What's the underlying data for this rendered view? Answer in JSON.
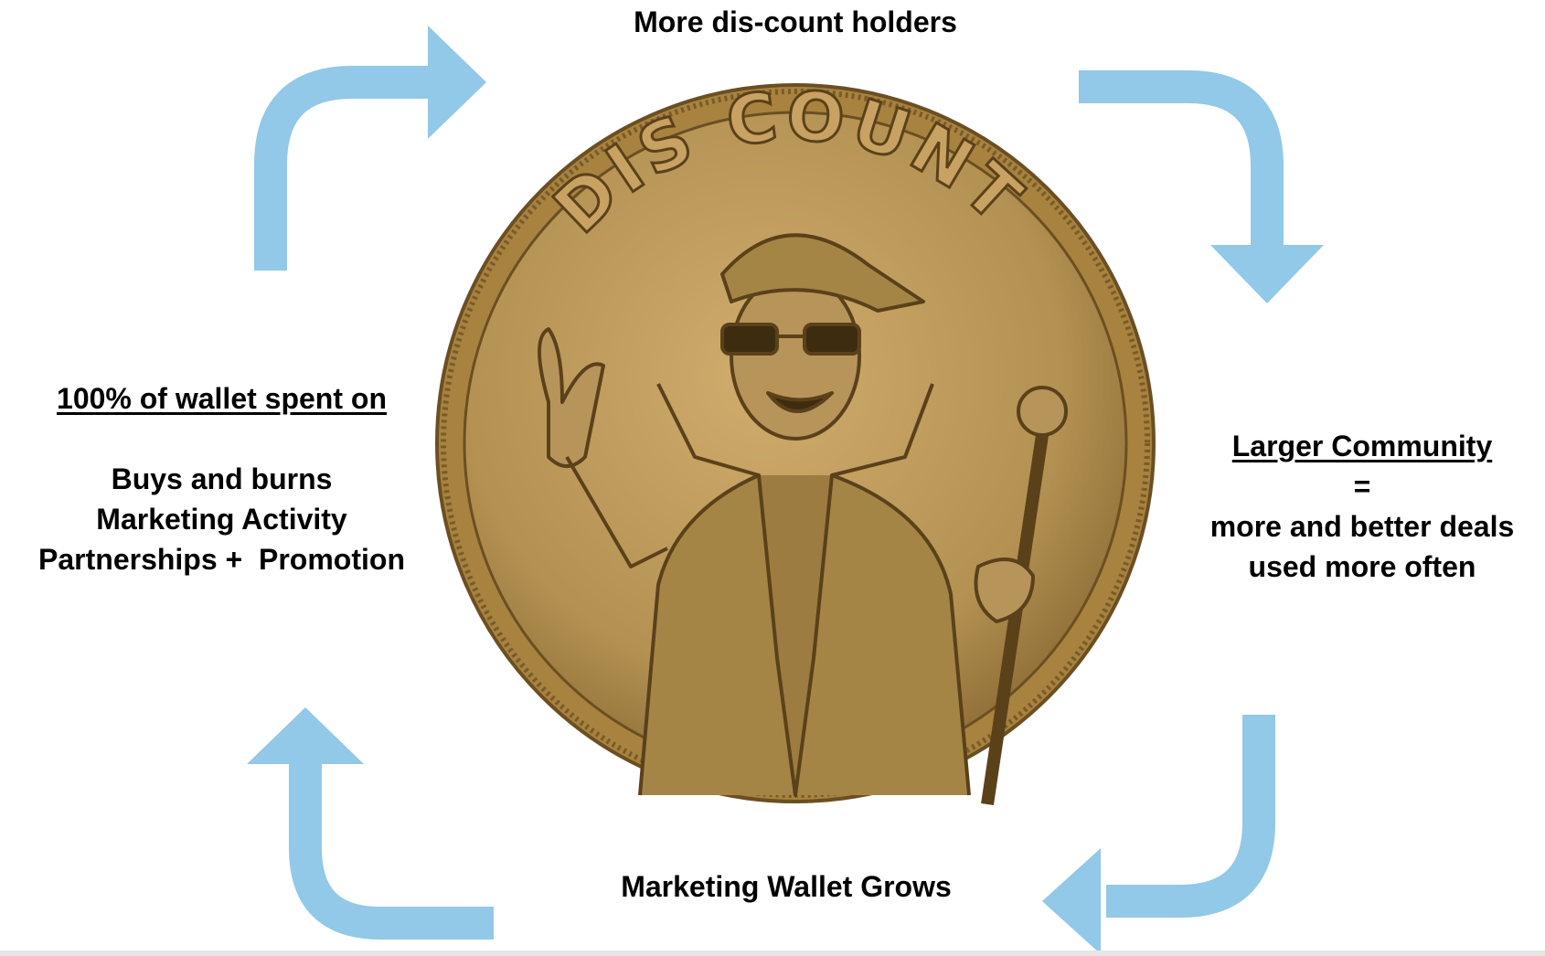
{
  "colors": {
    "arrow": "#92c8e8",
    "coin": "#b39152",
    "coin_dark": "#6b4f22",
    "background": "#ffffff"
  },
  "coin": {
    "inscription": "DIS COUNT",
    "icon": "coin-character-icon"
  },
  "labels": {
    "top": "More dis-count holders",
    "left": {
      "heading": "100% of wallet spent on",
      "items": [
        "Buys and burns",
        "Marketing Activity",
        "Partnerships +  Promotion"
      ]
    },
    "right": {
      "heading": "Larger Community",
      "equals": "=",
      "lines": [
        "more and better deals",
        "used more often"
      ]
    },
    "bottom": "Marketing Wallet Grows"
  }
}
